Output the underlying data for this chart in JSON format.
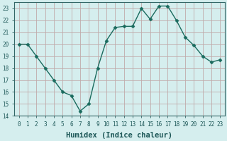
{
  "x": [
    0,
    1,
    2,
    3,
    4,
    5,
    6,
    7,
    8,
    9,
    10,
    11,
    12,
    13,
    14,
    15,
    16,
    17,
    18,
    19,
    20,
    21,
    22,
    23
  ],
  "y": [
    20,
    20,
    19,
    18,
    17,
    16,
    15.7,
    14.4,
    15,
    18,
    20.3,
    21.4,
    21.5,
    21.5,
    23,
    22.1,
    23.2,
    23.2,
    22,
    20.6,
    19.9,
    19,
    18.5,
    18.7
  ],
  "line_color": "#1a6b5e",
  "marker": "D",
  "marker_size": 2.5,
  "bg_color": "#d5eeee",
  "grid_color": "#c0aaaa",
  "xlabel": "Humidex (Indice chaleur)",
  "xlabel_fontsize": 7.5,
  "ylim": [
    14,
    23.5
  ],
  "yticks": [
    14,
    15,
    16,
    17,
    18,
    19,
    20,
    21,
    22,
    23
  ],
  "xticks": [
    0,
    1,
    2,
    3,
    4,
    5,
    6,
    7,
    8,
    9,
    10,
    11,
    12,
    13,
    14,
    15,
    16,
    17,
    18,
    19,
    20,
    21,
    22,
    23
  ],
  "tick_fontsize": 5.5,
  "line_width": 1.0,
  "tick_color": "#1a5555",
  "spine_color": "#336666"
}
